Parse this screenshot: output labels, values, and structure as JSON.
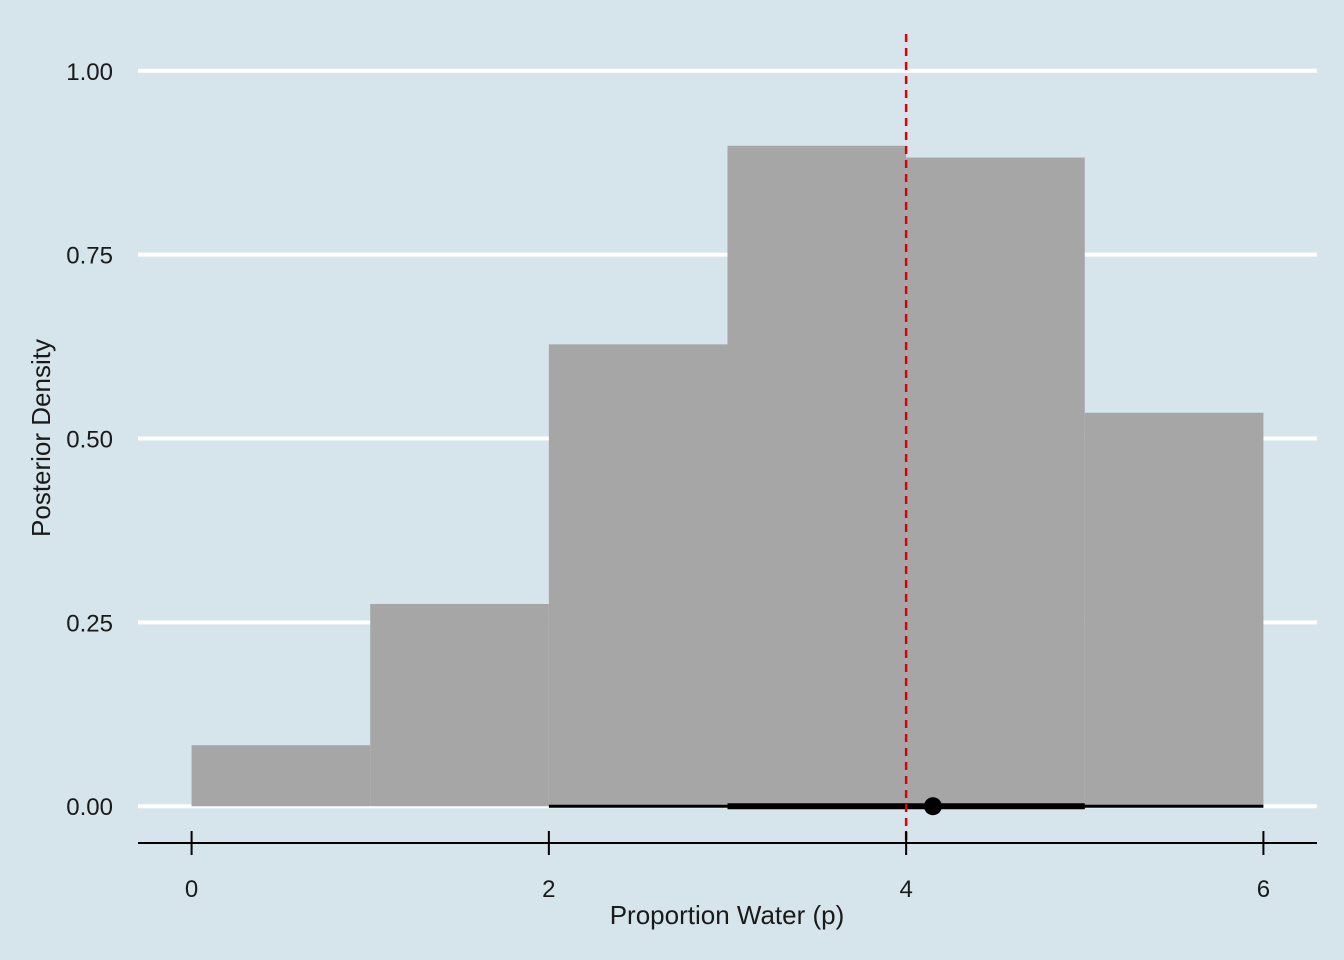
{
  "chart_data": {
    "type": "bar",
    "subtype": "histogram",
    "title": "",
    "xlabel": "Proportion Water (p)",
    "ylabel": "Posterior Density",
    "xlim": [
      -0.3,
      6.3
    ],
    "ylim": [
      -0.05,
      1.05
    ],
    "x_ticks": [
      0,
      2,
      4,
      6
    ],
    "y_ticks": [
      0.0,
      0.25,
      0.5,
      0.75,
      1.0
    ],
    "x_tick_labels": [
      "0",
      "2",
      "4",
      "6"
    ],
    "y_tick_labels": [
      "0.00",
      "0.25",
      "0.50",
      "0.75",
      "1.00"
    ],
    "bins": [
      {
        "x0": 0,
        "x1": 1,
        "density": 0.083
      },
      {
        "x0": 1,
        "x1": 2,
        "density": 0.275
      },
      {
        "x0": 2,
        "x1": 3,
        "density": 0.628
      },
      {
        "x0": 3,
        "x1": 4,
        "density": 0.898
      },
      {
        "x0": 4,
        "x1": 5,
        "density": 0.882
      },
      {
        "x0": 5,
        "x1": 6,
        "density": 0.535
      }
    ],
    "reference_line": {
      "x": 4,
      "color": "#e00000",
      "style": "dashed"
    },
    "point_interval": {
      "point": 4.15,
      "inner": [
        3,
        5
      ],
      "outer": [
        2,
        6
      ]
    },
    "grid": "horizontal major",
    "legend": "none",
    "colors": {
      "background": "#d6e4eb",
      "bars": "#a6a6a6",
      "grid": "#ffffff",
      "reference": "#e00000",
      "interval": "#000000"
    }
  }
}
